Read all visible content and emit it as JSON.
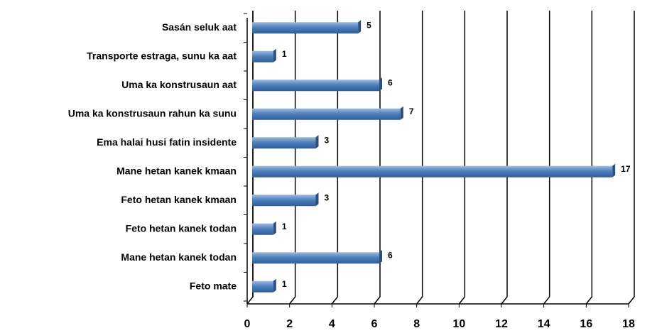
{
  "chart_data": {
    "type": "bar",
    "orientation": "horizontal",
    "categories": [
      "Sasán seluk aat",
      "Transporte estraga, sunu ka aat",
      "Uma ka konstrusaun aat",
      "Uma ka konstrusaun rahun ka sunu",
      "Ema halai husi fatin insidente",
      "Mane hetan kanek kmaan",
      "Feto hetan kanek kmaan",
      "Feto hetan kanek todan",
      "Mane hetan kanek todan",
      "Feto mate"
    ],
    "values": [
      5,
      1,
      6,
      7,
      3,
      17,
      3,
      1,
      6,
      1
    ],
    "color": "#4f81bd",
    "xlim": [
      0,
      18
    ],
    "xticks": [
      0,
      2,
      4,
      6,
      8,
      10,
      12,
      14,
      16,
      18
    ],
    "grid": true
  }
}
